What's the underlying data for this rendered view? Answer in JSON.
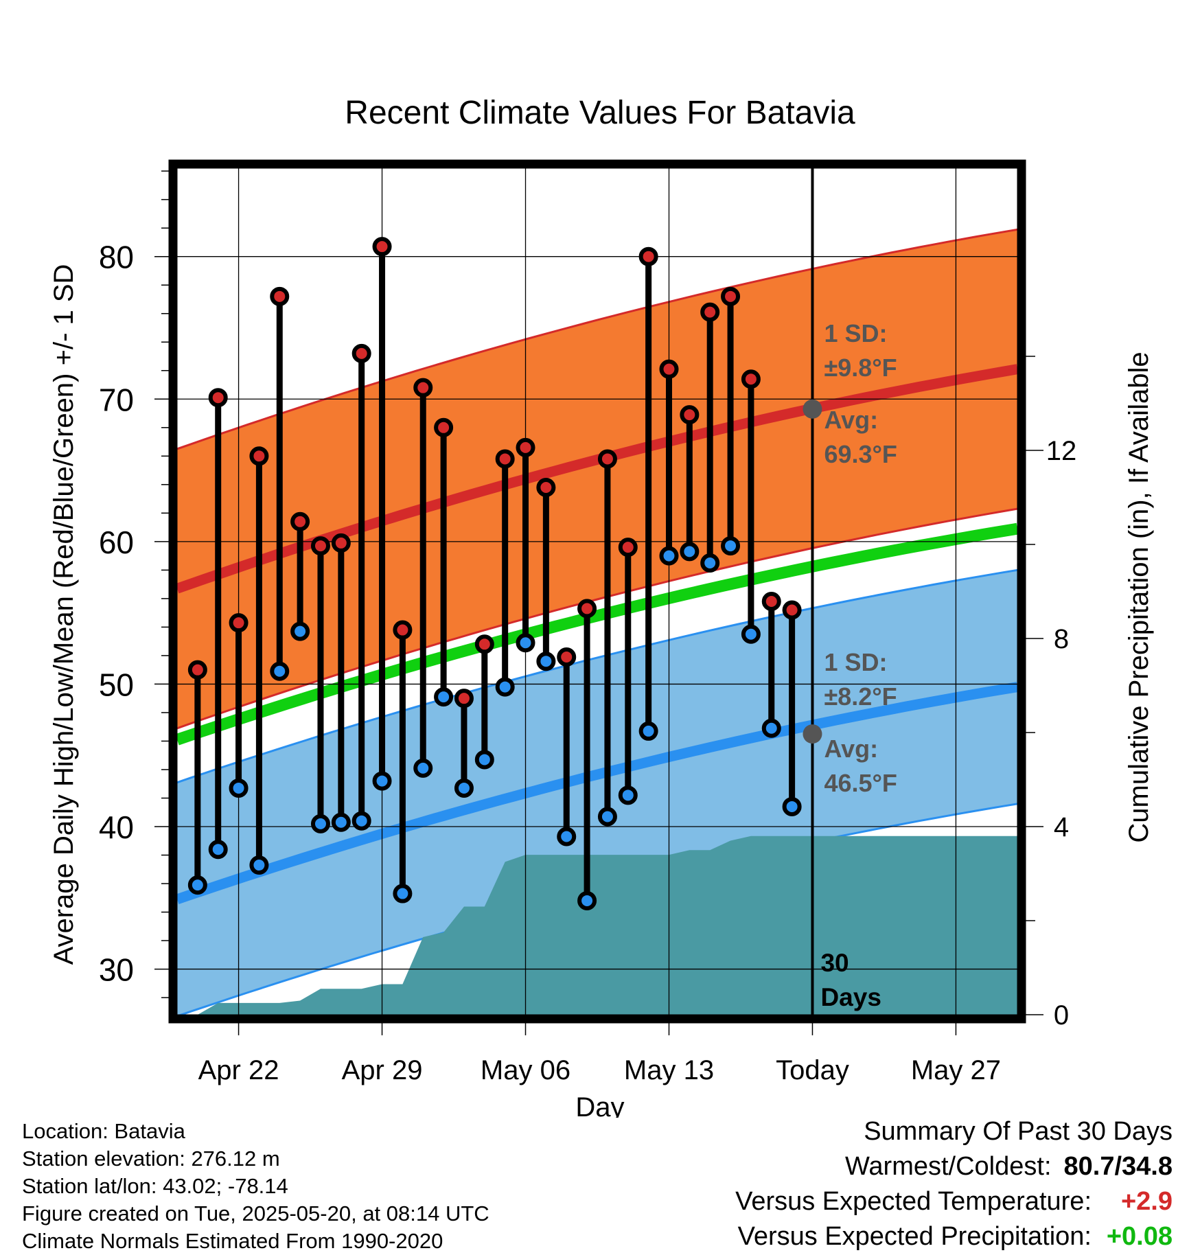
{
  "chart_data": {
    "type": "line",
    "title": "Recent Climate Values For Batavia",
    "xlabel": "Day",
    "ylabel": "Average Daily High/Low/Mean (Red/Blue/Green) +/- 1 SD",
    "y2label": "Cumulative Precipitation (in), If Available",
    "ylim": [
      26.8,
      86.2
    ],
    "y2lim": [
      0,
      18
    ],
    "y_ticks": [
      "30",
      "40",
      "50",
      "60",
      "70",
      "80"
    ],
    "y2_ticks": [
      "0",
      "4",
      "8",
      "12"
    ],
    "x_range": [
      "Apr 19",
      "May 30"
    ],
    "x_tick_dates": [
      "Apr 22",
      "Apr 29",
      "May 06",
      "May 13",
      "May 20",
      "May 27"
    ],
    "x_tick_labels": [
      "Apr 22",
      "Apr 29",
      "May 06",
      "May 13",
      "Today",
      "May 27"
    ],
    "today": "May 20",
    "today_label_line1": "30",
    "today_label_line2": "Days",
    "grid": true,
    "dates": [
      "Apr 20",
      "Apr 21",
      "Apr 22",
      "Apr 23",
      "Apr 24",
      "Apr 25",
      "Apr 26",
      "Apr 27",
      "Apr 28",
      "Apr 29",
      "Apr 30",
      "May 01",
      "May 02",
      "May 03",
      "May 04",
      "May 05",
      "May 06",
      "May 07",
      "May 08",
      "May 09",
      "May 10",
      "May 11",
      "May 12",
      "May 13",
      "May 14",
      "May 15",
      "May 16",
      "May 17",
      "May 18",
      "May 19"
    ],
    "daily_high": [
      51.0,
      70.1,
      54.3,
      66.0,
      77.2,
      61.4,
      59.7,
      59.9,
      73.2,
      80.7,
      53.8,
      70.8,
      68.0,
      49.0,
      52.8,
      65.8,
      66.6,
      63.8,
      51.9,
      55.3,
      65.8,
      59.6,
      80.0,
      72.1,
      68.9,
      76.1,
      77.2,
      71.4,
      55.8,
      55.2
    ],
    "daily_low": [
      35.9,
      38.4,
      42.7,
      37.3,
      50.9,
      53.7,
      40.2,
      40.3,
      40.4,
      43.2,
      35.3,
      44.1,
      49.1,
      42.7,
      44.7,
      49.8,
      52.9,
      51.6,
      39.3,
      34.8,
      40.7,
      42.2,
      46.7,
      59.0,
      59.3,
      58.5,
      59.7,
      53.5,
      46.9,
      41.4
    ],
    "normal_high": {
      "start": 56.7,
      "end": 72.1,
      "sd": 9.8
    },
    "normal_low": {
      "start": 34.9,
      "end": 49.8,
      "sd": 8.2
    },
    "normal_mean": {
      "start": 46.1,
      "end": 60.9
    },
    "cumulative_precip": {
      "x": [
        "Apr 19",
        "Apr 20",
        "Apr 21",
        "Apr 24",
        "Apr 25",
        "Apr 26",
        "Apr 28",
        "Apr 29",
        "Apr 30",
        "May 01",
        "May 02",
        "May 03",
        "May 04",
        "May 05",
        "May 06",
        "May 07",
        "May 13",
        "May 14",
        "May 15",
        "May 16",
        "May 17",
        "May 18",
        "May 30"
      ],
      "values": [
        0.0,
        0.0,
        0.25,
        0.25,
        0.3,
        0.55,
        0.55,
        0.65,
        0.65,
        1.65,
        1.75,
        2.3,
        2.3,
        3.25,
        3.4,
        3.4,
        3.4,
        3.5,
        3.5,
        3.7,
        3.8,
        3.8,
        3.8
      ]
    },
    "annotations": {
      "high_sd": [
        "1 SD:",
        "±9.8°F"
      ],
      "high_avg": [
        "Avg:",
        "69.3°F"
      ],
      "low_sd": [
        "1 SD:",
        "±8.2°F"
      ],
      "low_avg": [
        "Avg:",
        "46.5°F"
      ],
      "high_avg_value": 69.3,
      "low_avg_value": 46.5
    },
    "colors": {
      "high_band": "#f47a30",
      "high_line": "#d42a2a",
      "low_band": "#80bde6",
      "low_line": "#2a90f0",
      "mean_line": "#10d010",
      "precip": "#4a9aa3",
      "high_dot": "#d42a2a",
      "low_dot": "#2a90f0",
      "annotation": "#555555"
    }
  },
  "footer": {
    "location": "Location: Batavia",
    "elevation": "Station elevation: 276.12 m",
    "latlon": "Station lat/lon: 43.02; -78.14",
    "created": "Figure created on Tue, 2025-05-20, at 08:14 UTC",
    "normals": "Climate Normals Estimated From 1990-2020"
  },
  "summary": {
    "title": "Summary Of Past 30 Days",
    "warm_cold_label": "Warmest/Coldest:",
    "warm_cold_value": "80.7/34.8",
    "temp_label": "Versus Expected Temperature:",
    "temp_value": "+2.9",
    "temp_color": "#d42a2a",
    "precip_label": "Versus Expected Precipitation:",
    "precip_value": "+0.08",
    "precip_color": "#10b810"
  }
}
